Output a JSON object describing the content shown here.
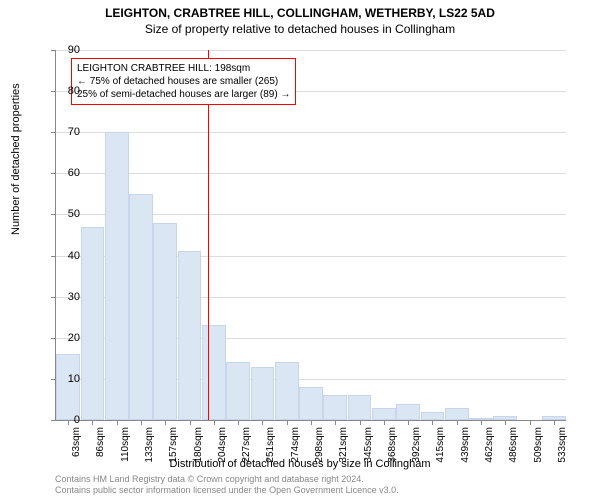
{
  "title_main": "LEIGHTON, CRABTREE HILL, COLLINGHAM, WETHERBY, LS22 5AD",
  "title_sub": "Size of property relative to detached houses in Collingham",
  "chart": {
    "type": "histogram",
    "y_axis_label": "Number of detached properties",
    "x_axis_label": "Distribution of detached houses by size in Collingham",
    "ylim": [
      0,
      90
    ],
    "yticks": [
      0,
      10,
      20,
      30,
      40,
      50,
      60,
      70,
      80,
      90
    ],
    "xcategories": [
      "63sqm",
      "86sqm",
      "110sqm",
      "133sqm",
      "157sqm",
      "180sqm",
      "204sqm",
      "227sqm",
      "251sqm",
      "274sqm",
      "298sqm",
      "321sqm",
      "345sqm",
      "368sqm",
      "392sqm",
      "415sqm",
      "439sqm",
      "462sqm",
      "486sqm",
      "509sqm",
      "533sqm"
    ],
    "values": [
      16,
      47,
      70,
      55,
      48,
      41,
      23,
      14,
      13,
      14,
      8,
      6,
      6,
      3,
      4,
      2,
      3,
      0.5,
      1,
      0,
      1
    ],
    "bar_fill": "#dbe6f4",
    "bar_stroke": "#c7d6ea",
    "grid_color": "#dddddd",
    "axis_color": "#888888",
    "background_color": "#ffffff",
    "label_fontsize": 11,
    "tick_fontsize": 10
  },
  "reference_line": {
    "x_value": "198sqm",
    "color": "#ff0000"
  },
  "annotation": {
    "line1": "LEIGHTON CRABTREE HILL: 198sqm",
    "line2": "← 75% of detached houses are smaller (265)",
    "line3": "25% of semi-detached houses are larger (89) →",
    "border_color": "#ff0000"
  },
  "footer": {
    "line1": "Contains HM Land Registry data © Crown copyright and database right 2024.",
    "line2": "Contains public sector information licensed under the Open Government Licence v3.0."
  }
}
